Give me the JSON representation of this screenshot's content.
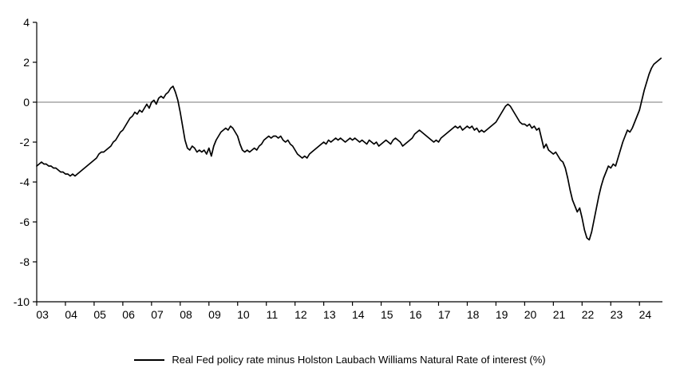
{
  "chart_data": {
    "type": "line",
    "title": "",
    "xlabel": "",
    "ylabel": "",
    "ylim": [
      -10,
      4
    ],
    "yticks": [
      4,
      2,
      0,
      -2,
      -4,
      -6,
      -8,
      -10
    ],
    "xlim": [
      2003,
      2024.8
    ],
    "xtick_positions": [
      2003,
      2004,
      2005,
      2006,
      2007,
      2008,
      2009,
      2010,
      2011,
      2012,
      2013,
      2014,
      2015,
      2016,
      2017,
      2018,
      2019,
      2020,
      2021,
      2022,
      2023,
      2024
    ],
    "xtick_labels": [
      "03",
      "04",
      "05",
      "06",
      "07",
      "08",
      "09",
      "10",
      "11",
      "12",
      "13",
      "14",
      "15",
      "16",
      "17",
      "18",
      "19",
      "20",
      "21",
      "22",
      "23",
      "24"
    ],
    "grid": false,
    "zero_line": true,
    "zero_line_color": "#a6a6a6",
    "axis_color": "#000000",
    "legend_position": "bottom",
    "series": [
      {
        "name": "Real Fed policy rate minus Holston Laubach Williams Natural Rate of interest (%)",
        "color": "#000000",
        "x_start": 2003,
        "points_per_year": 12,
        "values": [
          -3.2,
          -3.1,
          -3.0,
          -3.1,
          -3.1,
          -3.2,
          -3.2,
          -3.3,
          -3.3,
          -3.4,
          -3.5,
          -3.5,
          -3.6,
          -3.6,
          -3.7,
          -3.6,
          -3.7,
          -3.6,
          -3.5,
          -3.4,
          -3.3,
          -3.2,
          -3.1,
          -3.0,
          -2.9,
          -2.8,
          -2.6,
          -2.5,
          -2.5,
          -2.4,
          -2.3,
          -2.2,
          -2.0,
          -1.9,
          -1.7,
          -1.5,
          -1.4,
          -1.2,
          -1.0,
          -0.8,
          -0.7,
          -0.5,
          -0.6,
          -0.4,
          -0.5,
          -0.3,
          -0.1,
          -0.3,
          0.0,
          0.1,
          -0.1,
          0.2,
          0.3,
          0.2,
          0.4,
          0.5,
          0.7,
          0.8,
          0.5,
          0.1,
          -0.5,
          -1.2,
          -1.9,
          -2.3,
          -2.4,
          -2.2,
          -2.3,
          -2.5,
          -2.4,
          -2.5,
          -2.4,
          -2.6,
          -2.3,
          -2.7,
          -2.2,
          -1.9,
          -1.7,
          -1.5,
          -1.4,
          -1.3,
          -1.4,
          -1.2,
          -1.3,
          -1.5,
          -1.7,
          -2.1,
          -2.4,
          -2.5,
          -2.4,
          -2.5,
          -2.4,
          -2.3,
          -2.4,
          -2.2,
          -2.1,
          -1.9,
          -1.8,
          -1.7,
          -1.8,
          -1.7,
          -1.7,
          -1.8,
          -1.7,
          -1.9,
          -2.0,
          -1.9,
          -2.1,
          -2.2,
          -2.4,
          -2.6,
          -2.7,
          -2.8,
          -2.7,
          -2.8,
          -2.6,
          -2.5,
          -2.4,
          -2.3,
          -2.2,
          -2.1,
          -2.0,
          -2.1,
          -1.9,
          -2.0,
          -1.9,
          -1.8,
          -1.9,
          -1.8,
          -1.9,
          -2.0,
          -1.9,
          -1.8,
          -1.9,
          -1.8,
          -1.9,
          -2.0,
          -1.9,
          -2.0,
          -2.1,
          -1.9,
          -2.0,
          -2.1,
          -2.0,
          -2.2,
          -2.1,
          -2.0,
          -1.9,
          -2.0,
          -2.1,
          -1.9,
          -1.8,
          -1.9,
          -2.0,
          -2.2,
          -2.1,
          -2.0,
          -1.9,
          -1.8,
          -1.6,
          -1.5,
          -1.4,
          -1.5,
          -1.6,
          -1.7,
          -1.8,
          -1.9,
          -2.0,
          -1.9,
          -2.0,
          -1.8,
          -1.7,
          -1.6,
          -1.5,
          -1.4,
          -1.3,
          -1.2,
          -1.3,
          -1.2,
          -1.4,
          -1.3,
          -1.2,
          -1.3,
          -1.2,
          -1.4,
          -1.3,
          -1.5,
          -1.4,
          -1.5,
          -1.4,
          -1.3,
          -1.2,
          -1.1,
          -1.0,
          -0.8,
          -0.6,
          -0.4,
          -0.2,
          -0.1,
          -0.2,
          -0.4,
          -0.6,
          -0.8,
          -1.0,
          -1.1,
          -1.1,
          -1.2,
          -1.1,
          -1.3,
          -1.2,
          -1.4,
          -1.3,
          -1.8,
          -2.3,
          -2.1,
          -2.4,
          -2.5,
          -2.6,
          -2.5,
          -2.7,
          -2.9,
          -3.0,
          -3.3,
          -3.8,
          -4.4,
          -4.9,
          -5.2,
          -5.5,
          -5.3,
          -5.8,
          -6.4,
          -6.8,
          -6.9,
          -6.5,
          -5.9,
          -5.3,
          -4.7,
          -4.2,
          -3.8,
          -3.5,
          -3.2,
          -3.3,
          -3.1,
          -3.2,
          -2.8,
          -2.4,
          -2.0,
          -1.7,
          -1.4,
          -1.5,
          -1.3,
          -1.0,
          -0.7,
          -0.4,
          0.1,
          0.6,
          1.0,
          1.4,
          1.7,
          1.9,
          2.0,
          2.1,
          2.2
        ]
      }
    ]
  }
}
